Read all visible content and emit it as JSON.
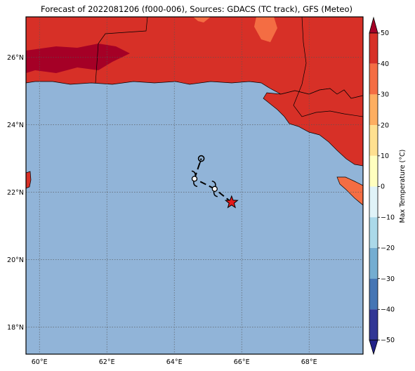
{
  "title": "Forecast of 2022081206 (f000-006), Sources: GDACS (TC track), GFS (Meteo)",
  "map": {
    "lon_range": [
      59.6,
      69.6
    ],
    "lat_range": [
      17.2,
      27.2
    ],
    "lon_ticks": [
      {
        "value": 60,
        "label": "60°E"
      },
      {
        "value": 62,
        "label": "62°E"
      },
      {
        "value": 64,
        "label": "64°E"
      },
      {
        "value": 66,
        "label": "66°E"
      },
      {
        "value": 68,
        "label": "68°E"
      }
    ],
    "lat_ticks": [
      {
        "value": 18,
        "label": "18°N"
      },
      {
        "value": 20,
        "label": "20°N"
      },
      {
        "value": 22,
        "label": "22°N"
      },
      {
        "value": 24,
        "label": "24°N"
      },
      {
        "value": 26,
        "label": "26°N"
      }
    ],
    "ocean_color": "#91b4d8",
    "land_color": "#d73027",
    "warm_color": "#f46d43",
    "hot_color": "#a50026",
    "gridlines": "dotted"
  },
  "track": {
    "points": [
      {
        "lon": 65.7,
        "lat": 21.7,
        "type": "current-position-star"
      },
      {
        "lon": 65.2,
        "lat": 22.1,
        "type": "tropical-storm-symbol"
      },
      {
        "lon": 64.6,
        "lat": 22.4,
        "type": "tropical-storm-symbol"
      },
      {
        "lon": 64.8,
        "lat": 23.0,
        "type": "low-pressure-circle"
      }
    ],
    "star_color": "#e41a1c"
  },
  "colorbar": {
    "label": "Max Temperature (°C)",
    "ticks": [
      "50",
      "40",
      "30",
      "20",
      "10",
      "0",
      "−10",
      "−20",
      "−30",
      "−40",
      "−50"
    ],
    "colors": [
      "#a50026",
      "#d73027",
      "#f46d43",
      "#fdae61",
      "#fee090",
      "#ffffbf",
      "#e0f3f8",
      "#abd9e9",
      "#74add1",
      "#4575b4",
      "#313695",
      "#222288"
    ]
  }
}
